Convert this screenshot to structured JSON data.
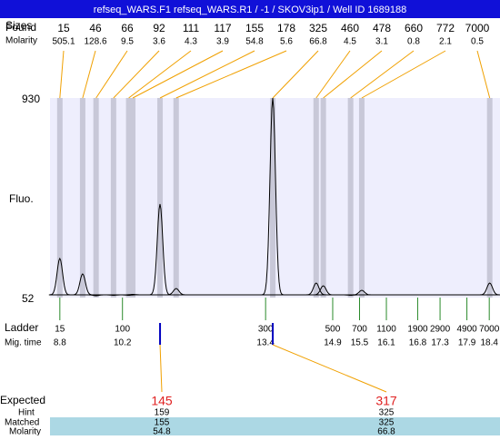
{
  "chart_data": {
    "type": "electropherogram",
    "title": "refseq_WARS.F1  refseq_WARS.R1 / -1 / SKOV3ip1 / Well ID 1689188",
    "y_label": "Fluo.",
    "ylim": [
      52,
      930
    ],
    "yticks": [
      52,
      930
    ],
    "xlim": [
      8.58,
      18.64
    ],
    "sizes_label": "Sizes",
    "found_label": "Found",
    "molarity_label": "Molarity",
    "peaks": {
      "sizes": [
        15,
        46,
        66,
        92,
        111,
        117,
        155,
        178,
        325,
        460,
        478,
        660,
        772,
        7000
      ],
      "molarity": [
        505.1,
        128.6,
        9.5,
        3.6,
        4.3,
        3.9,
        54.8,
        5.6,
        66.8,
        4.5,
        3.1,
        0.8,
        2.1,
        0.5
      ],
      "times": [
        8.8,
        9.31,
        9.61,
        10.0,
        10.34,
        10.43,
        11.04,
        11.4,
        13.56,
        14.53,
        14.69,
        15.3,
        15.55,
        18.41
      ],
      "heights": [
        224,
        156,
        60,
        62,
        62,
        66,
        463,
        92,
        930,
        116,
        104,
        62,
        84,
        116
      ]
    },
    "ladder": {
      "label": "Ladder",
      "time_label": "Mig. time",
      "sizes": [
        15,
        100,
        300,
        500,
        700,
        1100,
        1900,
        2900,
        4900,
        7000
      ],
      "times": [
        8.8,
        10.2,
        13.4,
        14.9,
        15.5,
        16.1,
        16.8,
        17.3,
        17.9,
        18.4
      ]
    },
    "expected": {
      "label": "Expected",
      "hint_label": "Hint",
      "matched_label": "Matched",
      "molarity_label": "Molarity",
      "items": [
        {
          "expected": 145,
          "hint": 159,
          "matched": 155,
          "molarity": 54.8
        },
        {
          "expected": 317,
          "hint": 325,
          "matched": 325,
          "molarity": 66.8
        }
      ]
    }
  }
}
